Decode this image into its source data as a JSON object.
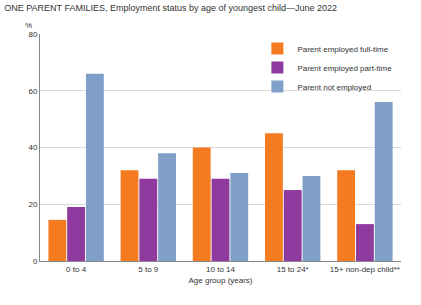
{
  "chart_data": {
    "type": "bar",
    "title": "ONE PARENT FAMILIES, Employment status by age of youngest child—June 2022",
    "x_label": "Age group (years)",
    "y_label": "%",
    "categories": [
      "0 to 4",
      "5 to 9",
      "10 to 14",
      "15 to 24*",
      "15+ non-dep child**"
    ],
    "series": [
      {
        "name": "Parent employed full-time",
        "color": "#f47b20",
        "values": [
          14.5,
          32,
          40,
          45,
          32
        ]
      },
      {
        "name": "Parent employed part-time",
        "color": "#8e3a9e",
        "values": [
          19,
          29,
          29,
          25,
          13
        ]
      },
      {
        "name": "Parent not employed",
        "color": "#7f9fc9",
        "values": [
          66,
          38,
          31,
          30,
          56
        ]
      }
    ],
    "ylim": [
      0,
      80
    ],
    "yticks": [
      0,
      20,
      40,
      60,
      80
    ],
    "grid": true,
    "legend": "top-right"
  }
}
